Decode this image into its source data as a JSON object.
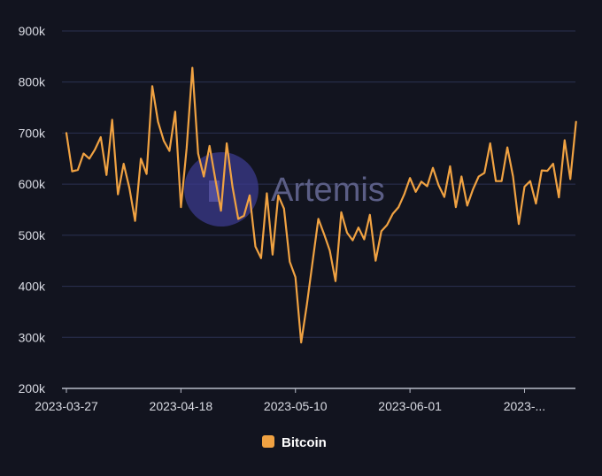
{
  "chart_data": {
    "type": "line",
    "title": "",
    "xlabel": "",
    "ylabel": "",
    "ylim": [
      200000,
      900000
    ],
    "yticks": [
      {
        "value": 200000,
        "label": "200k"
      },
      {
        "value": 300000,
        "label": "300k"
      },
      {
        "value": 400000,
        "label": "400k"
      },
      {
        "value": 500000,
        "label": "500k"
      },
      {
        "value": 600000,
        "label": "600k"
      },
      {
        "value": 700000,
        "label": "700k"
      },
      {
        "value": 800000,
        "label": "800k"
      },
      {
        "value": 900000,
        "label": "900k"
      }
    ],
    "xticks": [
      {
        "index": 0,
        "label": "2023-03-27"
      },
      {
        "index": 20,
        "label": "2023-04-18"
      },
      {
        "index": 40,
        "label": "2023-05-10"
      },
      {
        "index": 60,
        "label": "2023-06-01"
      },
      {
        "index": 80,
        "label": "2023-..."
      }
    ],
    "series": [
      {
        "name": "Bitcoin",
        "color": "#f0a242",
        "values": [
          700000,
          625000,
          628000,
          660000,
          650000,
          668000,
          692000,
          618000,
          726000,
          580000,
          640000,
          592000,
          528000,
          650000,
          620000,
          792000,
          722000,
          685000,
          665000,
          742000,
          555000,
          670000,
          828000,
          660000,
          615000,
          675000,
          610000,
          548000,
          680000,
          595000,
          532000,
          538000,
          578000,
          478000,
          455000,
          582000,
          462000,
          578000,
          552000,
          448000,
          418000,
          290000,
          365000,
          448000,
          532000,
          502000,
          470000,
          410000,
          545000,
          505000,
          490000,
          515000,
          492000,
          540000,
          450000,
          508000,
          520000,
          542000,
          555000,
          580000,
          612000,
          585000,
          605000,
          596000,
          632000,
          598000,
          575000,
          635000,
          555000,
          615000,
          558000,
          590000,
          615000,
          622000,
          680000,
          606000,
          606000,
          672000,
          615000,
          522000,
          595000,
          606000,
          562000,
          627000,
          626000,
          640000,
          574000,
          686000,
          610000,
          722000
        ]
      }
    ],
    "legend": {
      "position": "bottom-center",
      "entries": [
        "Bitcoin"
      ]
    }
  },
  "watermark": {
    "text": "Artemis"
  },
  "colors": {
    "background": "#12141f",
    "grid": "#2b3152",
    "axis": "#b8bbc8",
    "tick_text": "#d9dbe3",
    "line": "#f0a242",
    "watermark_circle": "#3b3a8c"
  }
}
